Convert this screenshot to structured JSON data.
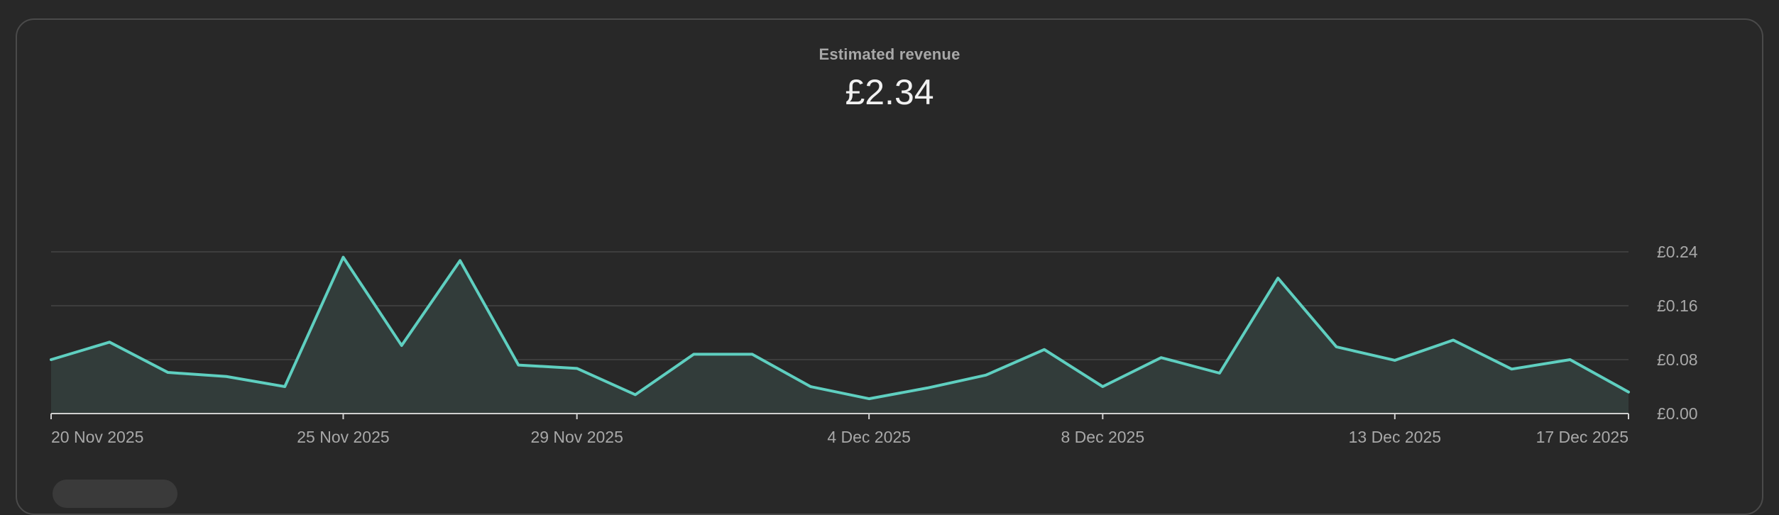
{
  "metric": {
    "label": "Estimated revenue",
    "value": "£2.34"
  },
  "colors": {
    "background": "#282828",
    "line": "#5fcfc0",
    "area_fill": "#323c3a",
    "grid": "#444444",
    "baseline": "#d0d0d0",
    "text_muted": "#a8a8a8"
  },
  "chart_data": {
    "type": "area",
    "title": "Estimated revenue",
    "x": [
      "20 Nov 2025",
      "21 Nov 2025",
      "22 Nov 2025",
      "23 Nov 2025",
      "24 Nov 2025",
      "25 Nov 2025",
      "26 Nov 2025",
      "27 Nov 2025",
      "28 Nov 2025",
      "29 Nov 2025",
      "30 Nov 2025",
      "1 Dec 2025",
      "2 Dec 2025",
      "3 Dec 2025",
      "4 Dec 2025",
      "5 Dec 2025",
      "6 Dec 2025",
      "7 Dec 2025",
      "8 Dec 2025",
      "9 Dec 2025",
      "10 Dec 2025",
      "11 Dec 2025",
      "12 Dec 2025",
      "13 Dec 2025",
      "14 Dec 2025",
      "15 Dec 2025",
      "16 Dec 2025",
      "17 Dec 2025"
    ],
    "series": [
      {
        "values": [
          0.08,
          0.106,
          0.061,
          0.055,
          0.04,
          0.232,
          0.101,
          0.227,
          0.072,
          0.067,
          0.028,
          0.088,
          0.088,
          0.04,
          0.022,
          0.038,
          0.057,
          0.095,
          0.04,
          0.083,
          0.06,
          0.201,
          0.099,
          0.079,
          0.109,
          0.066,
          0.08,
          0.032
        ]
      }
    ],
    "x_tick_labels": [
      "20 Nov 2025",
      "25 Nov 2025",
      "29 Nov 2025",
      "4 Dec 2025",
      "8 Dec 2025",
      "13 Dec 2025",
      "17 Dec 2025"
    ],
    "y_ticks": [
      0.0,
      0.08,
      0.16,
      0.24
    ],
    "y_tick_labels": [
      "£0.00",
      "£0.08",
      "£0.16",
      "£0.24"
    ],
    "ylim": [
      0,
      0.24
    ],
    "grid": true,
    "y_axis_side": "right",
    "legend": "none"
  }
}
